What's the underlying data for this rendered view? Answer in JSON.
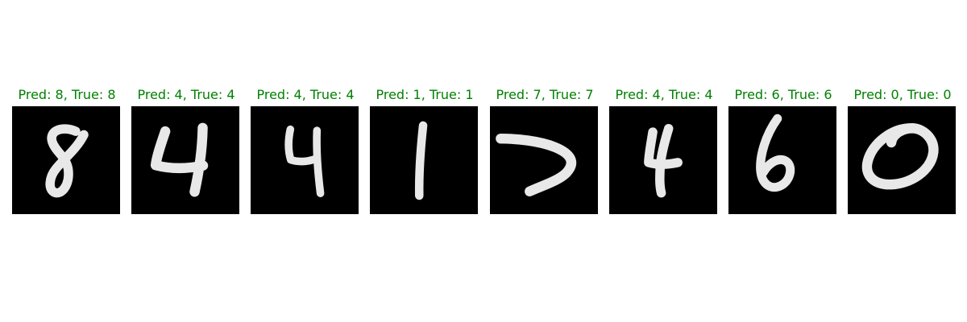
{
  "caption_color": "#008000",
  "panels": [
    {
      "pred": "8",
      "true": "8",
      "caption": "Pred: 8, True: 8",
      "digit": "8"
    },
    {
      "pred": "4",
      "true": "4",
      "caption": "Pred: 4, True: 4",
      "digit": "4"
    },
    {
      "pred": "4",
      "true": "4",
      "caption": "Pred: 4, True: 4",
      "digit": "4"
    },
    {
      "pred": "1",
      "true": "1",
      "caption": "Pred: 1, True: 1",
      "digit": "1"
    },
    {
      "pred": "7",
      "true": "7",
      "caption": "Pred: 7, True: 7",
      "digit": "7"
    },
    {
      "pred": "4",
      "true": "4",
      "caption": "Pred: 4, True: 4",
      "digit": "4"
    },
    {
      "pred": "6",
      "true": "6",
      "caption": "Pred: 6, True: 6",
      "digit": "6"
    },
    {
      "pred": "0",
      "true": "0",
      "caption": "Pred: 0, True: 0",
      "digit": "0"
    }
  ]
}
